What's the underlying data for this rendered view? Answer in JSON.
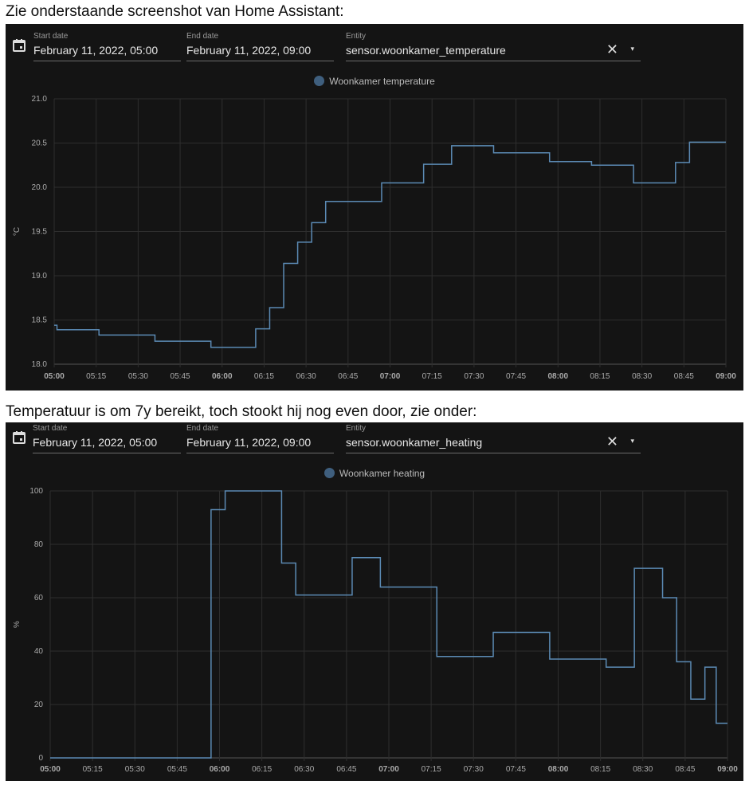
{
  "intro_text": "Zie onderstaande screenshot van Home Assistant:",
  "middle_text": "Temperatuur is om 7y bereikt, toch stookt hij nog even door, zie onder:",
  "colors": {
    "line": "#5b8ab4",
    "legend_dot": "#3f5f7e",
    "background": "#141414"
  },
  "cards": [
    {
      "start_label": "Start date",
      "start_value": "February 11, 2022, 05:00",
      "end_label": "End date",
      "end_value": "February 11, 2022, 09:00",
      "entity_label": "Entity",
      "entity_value": "sensor.woonkamer_temperature",
      "clear_icon": "✕",
      "dropdown_icon": "▾"
    },
    {
      "start_label": "Start date",
      "start_value": "February 11, 2022, 05:00",
      "end_label": "End date",
      "end_value": "February 11, 2022, 09:00",
      "entity_label": "Entity",
      "entity_value": "sensor.woonkamer_heating",
      "clear_icon": "✕",
      "dropdown_icon": "▾"
    }
  ],
  "chart_data": [
    {
      "type": "line",
      "step": true,
      "title": "",
      "legend": "Woonkamer temperature",
      "legend_position": "top-center",
      "ylabel": "°C",
      "xlabel": "",
      "xlim_minutes": [
        0,
        240
      ],
      "ylim": [
        18.0,
        21.0
      ],
      "yticks": [
        "18.0",
        "18.5",
        "19.0",
        "19.5",
        "20.0",
        "20.5",
        "21.0"
      ],
      "ytick_values": [
        18.0,
        18.5,
        19.0,
        19.5,
        20.0,
        20.5,
        21.0
      ],
      "xticks": [
        "05:00",
        "05:15",
        "05:30",
        "05:45",
        "06:00",
        "06:15",
        "06:30",
        "06:45",
        "07:00",
        "07:15",
        "07:30",
        "07:45",
        "08:00",
        "08:15",
        "08:30",
        "08:45",
        "09:00"
      ],
      "bold_xticks": [
        "05:00",
        "06:00",
        "07:00",
        "08:00",
        "09:00"
      ],
      "grid": true,
      "x_minutes_since_0500": [
        0,
        1,
        16,
        36,
        56,
        72,
        77,
        82,
        87,
        92,
        97,
        117,
        132,
        142,
        157,
        177,
        192,
        207,
        222,
        227,
        240
      ],
      "values": [
        18.44,
        18.39,
        18.33,
        18.26,
        18.19,
        18.4,
        18.64,
        19.14,
        19.38,
        19.6,
        19.84,
        20.05,
        20.26,
        20.47,
        20.39,
        20.29,
        20.25,
        20.05,
        20.28,
        20.51,
        20.51
      ]
    },
    {
      "type": "line",
      "step": true,
      "title": "",
      "legend": "Woonkamer heating",
      "legend_position": "top-center",
      "ylabel": "%",
      "xlabel": "",
      "xlim_minutes": [
        0,
        240
      ],
      "ylim": [
        0,
        100
      ],
      "yticks": [
        "0",
        "20",
        "40",
        "60",
        "80",
        "100"
      ],
      "ytick_values": [
        0,
        20,
        40,
        60,
        80,
        100
      ],
      "xticks": [
        "05:00",
        "05:15",
        "05:30",
        "05:45",
        "06:00",
        "06:15",
        "06:30",
        "06:45",
        "07:00",
        "07:15",
        "07:30",
        "07:45",
        "08:00",
        "08:15",
        "08:30",
        "08:45",
        "09:00"
      ],
      "bold_xticks": [
        "05:00",
        "06:00",
        "07:00",
        "08:00",
        "09:00"
      ],
      "grid": true,
      "x_minutes_since_0500": [
        0,
        57,
        62,
        82,
        87,
        107,
        117,
        137,
        157,
        177,
        197,
        207,
        217,
        222,
        227,
        232,
        236,
        240
      ],
      "values": [
        0,
        93,
        100,
        73,
        61,
        75,
        64,
        38,
        47,
        37,
        34,
        71,
        60,
        36,
        22,
        34,
        13,
        13
      ]
    }
  ]
}
